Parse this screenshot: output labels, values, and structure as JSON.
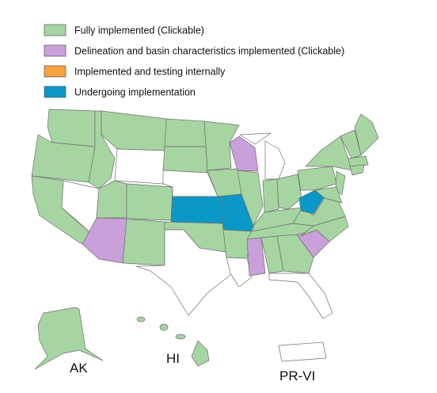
{
  "legend": [
    {
      "label": "Fully implemented (Clickable)",
      "color": "#a6d5a1"
    },
    {
      "label": "Delineation and basin characteristics implemented (Clickable)",
      "color": "#c9a0d9"
    },
    {
      "label": "Implemented and testing internally",
      "color": "#f7a23e"
    },
    {
      "label": "Undergoing implementation",
      "color": "#0a98c8"
    }
  ],
  "regions": {
    "alaska": "AK",
    "hawaii": "HI",
    "puerto_rico": "PR-VI"
  }
}
